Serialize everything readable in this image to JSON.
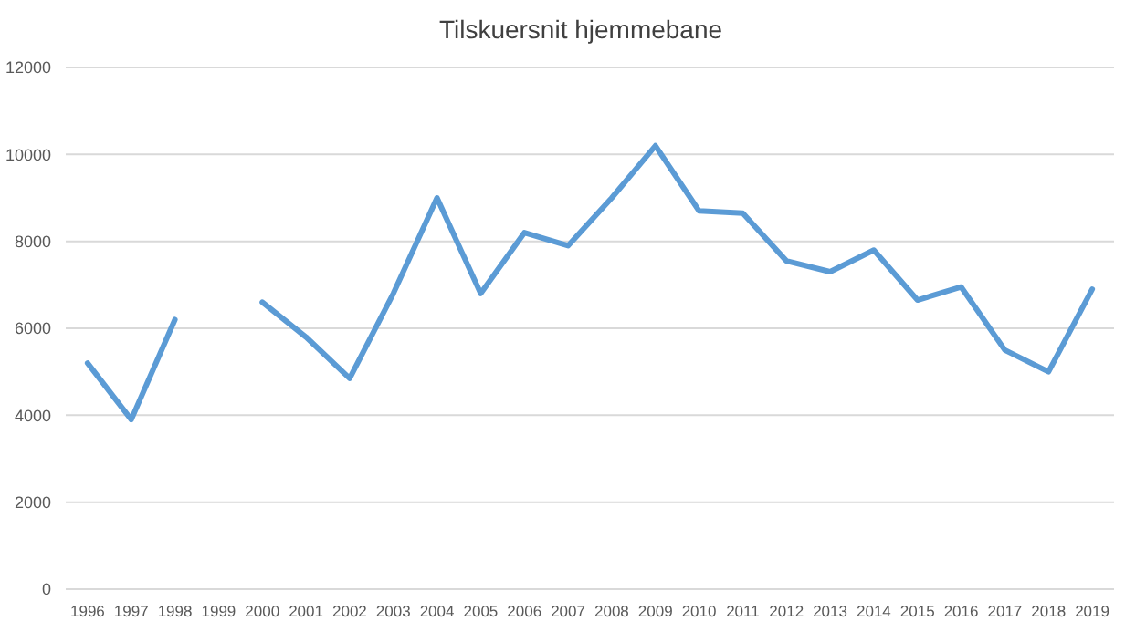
{
  "chart_data": {
    "type": "line",
    "title": "Tilskuersnit hjemmebane",
    "categories": [
      "1996",
      "1997",
      "1998",
      "1999",
      "2000",
      "2001",
      "2002",
      "2003",
      "2004",
      "2005",
      "2006",
      "2007",
      "2008",
      "2009",
      "2010",
      "2011",
      "2012",
      "2013",
      "2014",
      "2015",
      "2016",
      "2017",
      "2018",
      "2019"
    ],
    "series": [
      {
        "color": "#5b9bd5",
        "values": [
          5200,
          3900,
          6200,
          null,
          6600,
          5800,
          4850,
          6800,
          9000,
          6800,
          8200,
          7900,
          9000,
          10200,
          8700,
          8650,
          7550,
          7300,
          7800,
          6650,
          6950,
          5500,
          5000,
          6900
        ]
      }
    ],
    "ylim": [
      0,
      12000
    ],
    "yticks": [
      0,
      2000,
      4000,
      6000,
      8000,
      10000,
      12000
    ],
    "grid": "y",
    "marker": "none",
    "line_style": "solid"
  }
}
